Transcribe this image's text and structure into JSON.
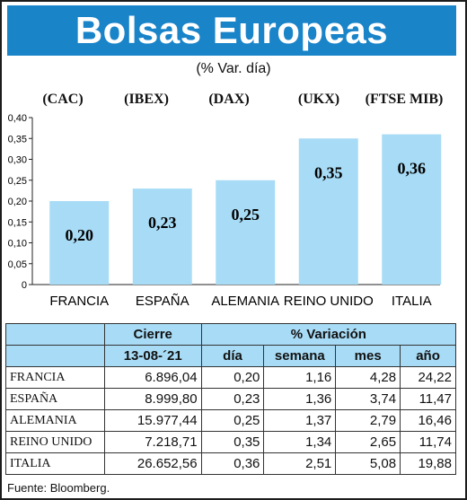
{
  "header": {
    "title": "Bolsas Europeas",
    "subtitle": "(% Var. día)"
  },
  "indices": [
    "(CAC)",
    "(IBEX)",
    "(DAX)",
    "(UKX)",
    "(FTSE MIB)"
  ],
  "chart_data": {
    "type": "bar",
    "categories": [
      "FRANCIA",
      "ESPAÑA",
      "ALEMANIA",
      "REINO UNIDO",
      "ITALIA"
    ],
    "values": [
      0.2,
      0.23,
      0.25,
      0.35,
      0.36
    ],
    "value_labels": [
      "0,20",
      "0,23",
      "0,25",
      "0,35",
      "0,36"
    ],
    "yticks": [
      "0",
      "0,05",
      "0,10",
      "0,15",
      "0,20",
      "0,25",
      "0,30",
      "0,35",
      "0,40"
    ],
    "ylim": [
      0,
      0.4
    ],
    "grid": false,
    "bar_color": "#a8dcf6"
  },
  "table": {
    "header_row1": {
      "blank": "",
      "cierre": "Cierre",
      "variacion": "% Variación"
    },
    "header_row2": {
      "blank": "",
      "date": "13-08-´21",
      "dia": "día",
      "semana": "semana",
      "mes": "mes",
      "ano": "año"
    },
    "rows": [
      {
        "name": "FRANCIA",
        "cierre": "6.896,04",
        "dia": "0,20",
        "semana": "1,16",
        "mes": "4,28",
        "ano": "24,22"
      },
      {
        "name": "ESPAÑA",
        "cierre": "8.999,80",
        "dia": "0,23",
        "semana": "1,36",
        "mes": "3,74",
        "ano": "11,47"
      },
      {
        "name": "ALEMANIA",
        "cierre": "15.977,44",
        "dia": "0,25",
        "semana": "1,37",
        "mes": "2,79",
        "ano": "16,46"
      },
      {
        "name": "REINO UNIDO",
        "cierre": "7.218,71",
        "dia": "0,35",
        "semana": "1,34",
        "mes": "2,65",
        "ano": "11,74"
      },
      {
        "name": "ITALIA",
        "cierre": "26.652,56",
        "dia": "0,36",
        "semana": "2,51",
        "mes": "5,08",
        "ano": "19,88"
      }
    ]
  },
  "source": "Fuente: Bloomberg.",
  "colors": {
    "banner": "#1a84c9",
    "bar": "#a8dcf6",
    "table_header": "#a8dcf6"
  }
}
